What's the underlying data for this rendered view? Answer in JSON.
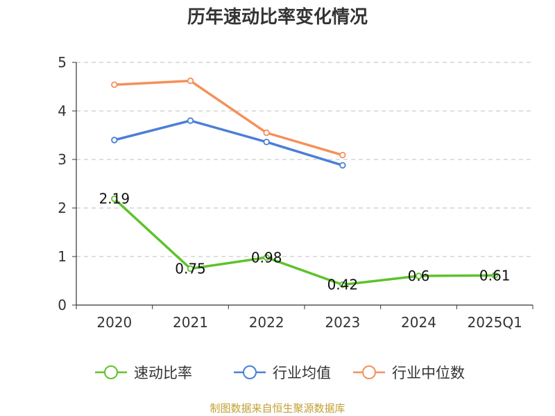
{
  "chart_data": {
    "type": "line",
    "title": "历年速动比率变化情况",
    "categories": [
      "2020",
      "2021",
      "2022",
      "2023",
      "2024",
      "2025Q1"
    ],
    "ylim": [
      0,
      5
    ],
    "yticks": [
      0,
      1,
      2,
      3,
      4,
      5
    ],
    "grid": true,
    "legend_position": "bottom",
    "series": [
      {
        "name": "速动比率",
        "color": "#5ec22a",
        "values": [
          2.19,
          0.75,
          0.98,
          0.42,
          0.6,
          0.61
        ],
        "labels": [
          "2.19",
          "0.75",
          "0.98",
          "0.42",
          "0.6",
          "0.61"
        ]
      },
      {
        "name": "行业均值",
        "color": "#4a7fd6",
        "values": [
          3.4,
          3.8,
          3.36,
          2.88,
          null,
          null
        ]
      },
      {
        "name": "行业中位数",
        "color": "#f4905a",
        "values": [
          4.54,
          4.62,
          3.55,
          3.09,
          null,
          null
        ]
      }
    ]
  },
  "source_note": "制图数据来自恒生聚源数据库"
}
